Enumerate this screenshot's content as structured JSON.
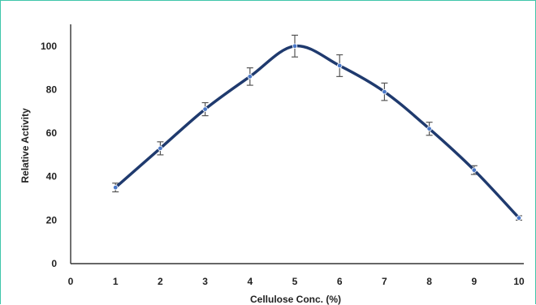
{
  "chart_data": {
    "type": "line",
    "xlabel": "Cellulose Conc. (%)",
    "ylabel": "Relative Activity",
    "xlim": [
      0,
      10
    ],
    "ylim": [
      0,
      110
    ],
    "x_ticks": [
      0,
      1,
      2,
      3,
      4,
      5,
      6,
      7,
      8,
      9,
      10
    ],
    "y_ticks": [
      0,
      20,
      40,
      60,
      80,
      100
    ],
    "grid": false,
    "smooth": true,
    "line_color": "#1f3a6e",
    "marker_color": "#4a78c8",
    "errorbar_color": "#555555",
    "series": [
      {
        "x": [
          1,
          2,
          3,
          4,
          5,
          6,
          7,
          8,
          9,
          10
        ],
        "y": [
          35,
          53,
          71,
          86,
          100,
          91,
          79,
          62,
          43,
          21
        ],
        "error": [
          2,
          3,
          3,
          4,
          5,
          5,
          4,
          3,
          2,
          1
        ]
      }
    ]
  },
  "frame_color": "#3fc6aa"
}
